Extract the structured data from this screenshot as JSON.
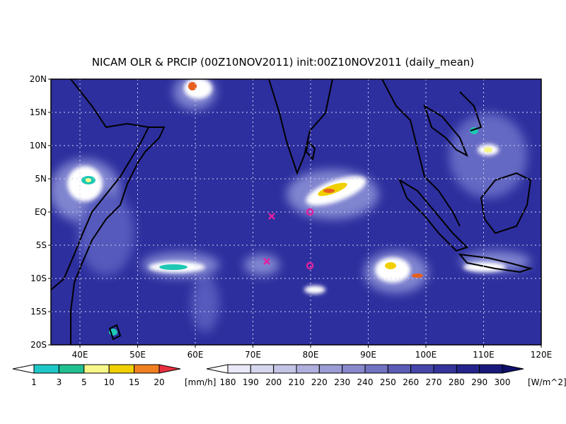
{
  "title": "NICAM OLR & PRCIP (00Z10NOV2011) init:00Z10NOV2011 (daily_mean)",
  "map": {
    "lat_labels": [
      "20N",
      "15N",
      "10N",
      "5N",
      "EQ",
      "5S",
      "10S",
      "15S",
      "20S"
    ],
    "lon_labels": [
      "40E",
      "50E",
      "60E",
      "70E",
      "80E",
      "90E",
      "100E",
      "110E",
      "120E"
    ]
  },
  "precip_bar": {
    "labels": [
      "1",
      "3",
      "5",
      "10",
      "15",
      "20"
    ],
    "unit": "[mm/h]"
  },
  "olr_bar": {
    "labels": [
      "180",
      "190",
      "200",
      "210",
      "220",
      "230",
      "240",
      "250",
      "260",
      "270",
      "280",
      "290",
      "300"
    ],
    "unit": "[W/m^2]"
  }
}
